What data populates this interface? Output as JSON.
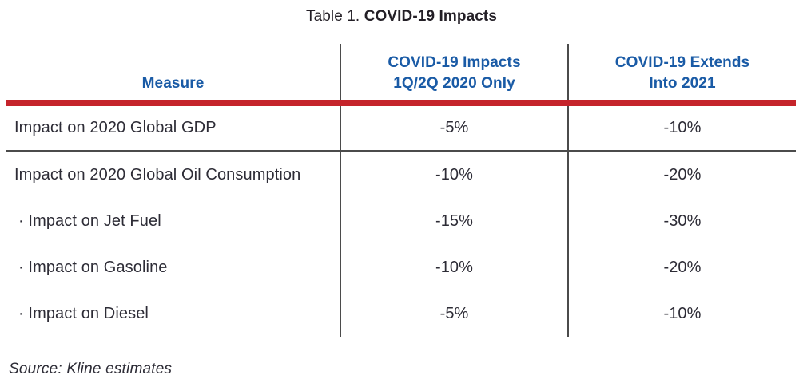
{
  "title": {
    "prefix": "Table 1. ",
    "bold": "COVID-19 Impacts"
  },
  "table": {
    "columns": [
      {
        "label": "Measure"
      },
      {
        "line1": "COVID-19 Impacts",
        "line2": "1Q/2Q 2020 Only"
      },
      {
        "line1": "COVID-19 Extends",
        "line2": "Into 2021"
      }
    ],
    "rows": [
      {
        "measure": "Impact on 2020 Global GDP",
        "q1q2_2020_only": "-5%",
        "extends_into_2021": "-10%"
      },
      {
        "measure": "Impact on 2020 Global Oil Consumption",
        "q1q2_2020_only": "-10%",
        "extends_into_2021": "-20%"
      },
      {
        "measure": "· Impact on Jet Fuel",
        "q1q2_2020_only": "-15%",
        "extends_into_2021": "-30%"
      },
      {
        "measure": "· Impact on Gasoline",
        "q1q2_2020_only": "-10%",
        "extends_into_2021": "-20%"
      },
      {
        "measure": "· Impact on Diesel",
        "q1q2_2020_only": "-5%",
        "extends_into_2021": "-10%"
      }
    ]
  },
  "source": "Source: Kline estimates",
  "colors": {
    "header_blue": "#1a5ba6",
    "rule_red": "#c5242b",
    "divider_gray": "#4b4b4b",
    "body_text": "#2d2c36"
  }
}
